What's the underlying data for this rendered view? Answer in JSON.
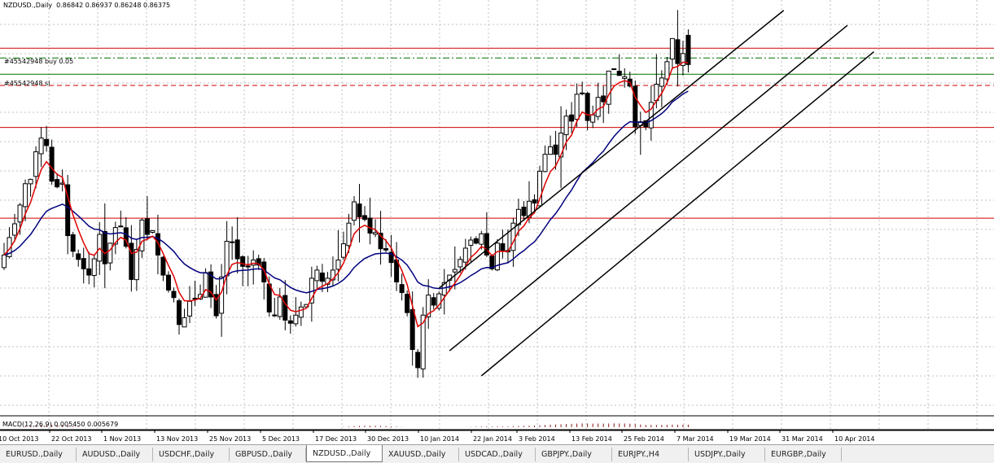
{
  "header": {
    "symbol_label": "NZDUSD.,Daily",
    "ohlc_label": "0.86842 0.86937 0.86248 0.86375"
  },
  "order_labels": {
    "buy": "#45542948 buy 0.05",
    "sl": "#45542948 sl"
  },
  "macd_label": "MACD(12,26,9) 0.005450 0.005679",
  "colors": {
    "grid": "#c0c0c0",
    "candle": "#000000",
    "ma_fast": "#e00000",
    "ma_slow": "#00007f",
    "hline_red": "#d00000",
    "hline_green": "#007000",
    "channel": "#000000"
  },
  "chart_data": {
    "type": "candlestick",
    "symbol": "NZDUSD.",
    "timeframe": "Daily",
    "x_tick_labels": [
      "10 Oct 2013",
      "22 Oct 2013",
      "1 Nov 2013",
      "13 Nov 2013",
      "25 Nov 2013",
      "5 Dec 2013",
      "17 Dec 2013",
      "30 Dec 2013",
      "10 Jan 2014",
      "22 Jan 2014",
      "3 Feb 2014",
      "13 Feb 2014",
      "25 Feb 2014",
      "7 Mar 2014",
      "19 Mar 2014",
      "31 Mar 2014",
      "10 Apr 2014"
    ],
    "last_bar": {
      "open": 0.86842,
      "high": 0.86937,
      "low": 0.86248,
      "close": 0.86375
    },
    "ylim": [
      0.808,
      0.8725
    ],
    "horizontal_lines": [
      {
        "price": 0.86635,
        "color": "red",
        "style": "solid"
      },
      {
        "price": 0.8648,
        "color": "green",
        "style": "dashdot"
      },
      {
        "price": 0.8622,
        "color": "green",
        "style": "solid"
      },
      {
        "price": 0.8604,
        "color": "red",
        "style": "dashed"
      },
      {
        "price": 0.8537,
        "color": "red",
        "style": "solid"
      },
      {
        "price": 0.8392,
        "color": "red",
        "style": "solid"
      }
    ],
    "closes": [
      0.8333,
      0.8361,
      0.8383,
      0.8413,
      0.8447,
      0.8454,
      0.8498,
      0.852,
      0.8508,
      0.8451,
      0.8442,
      0.8448,
      0.8364,
      0.8339,
      0.8326,
      0.8311,
      0.8301,
      0.8327,
      0.8366,
      0.8319,
      0.8352,
      0.8377,
      0.8378,
      0.8347,
      0.8294,
      0.8342,
      0.8389,
      0.8366,
      0.8372,
      0.8333,
      0.8301,
      0.8277,
      0.8265,
      0.8222,
      0.8233,
      0.8259,
      0.8264,
      0.827,
      0.8305,
      0.8266,
      0.8236,
      0.8298,
      0.8355,
      0.8353,
      0.8327,
      0.8315,
      0.8314,
      0.8325,
      0.8317,
      0.829,
      0.8242,
      0.8236,
      0.8266,
      0.8229,
      0.8224,
      0.8237,
      0.825,
      0.8254,
      0.8296,
      0.8309,
      0.8291,
      0.8296,
      0.8309,
      0.8325,
      0.8351,
      0.8384,
      0.8418,
      0.8394,
      0.839,
      0.8368,
      0.8369,
      0.8343,
      0.8341,
      0.8321,
      0.829,
      0.8273,
      0.8241,
      0.8182,
      0.8153,
      0.8237,
      0.8269,
      0.8253,
      0.8271,
      0.8289,
      0.8301,
      0.831,
      0.8326,
      0.8344,
      0.8357,
      0.8352,
      0.8367,
      0.8333,
      0.8311,
      0.8352,
      0.834,
      0.8338,
      0.8384,
      0.8406,
      0.8396,
      0.8419,
      0.8416,
      0.8467,
      0.8494,
      0.8506,
      0.8494,
      0.8528,
      0.8555,
      0.8547,
      0.859,
      0.8592,
      0.8548,
      0.8557,
      0.8585,
      0.8578,
      0.8627,
      0.863,
      0.862,
      0.8618,
      0.8603,
      0.8538,
      0.8546,
      0.8538,
      0.8577,
      0.8606,
      0.8616,
      0.8642,
      0.8679,
      0.8639,
      0.8655,
      0.8638
    ],
    "ma_fast": {
      "period": 5,
      "type": "EMA",
      "color": "red"
    },
    "ma_slow": {
      "period": 20,
      "type": "EMA",
      "color": "navy"
    },
    "channel_lines": [
      {
        "from": {
          "bar": 82,
          "price": 0.828
        },
        "to": {
          "bar": 147,
          "price": 0.8724
        }
      },
      {
        "from": {
          "bar": 84,
          "price": 0.818
        },
        "to": {
          "bar": 159,
          "price": 0.87
        }
      },
      {
        "from": {
          "bar": 90,
          "price": 0.814
        },
        "to": {
          "bar": 164,
          "price": 0.8658
        }
      }
    ],
    "macd": {
      "fast": 12,
      "slow": 26,
      "signal": 9,
      "main": 0.00545,
      "signal_value": 0.005679
    }
  },
  "tabs": [
    {
      "label": "EURUSD.,Daily",
      "active": false
    },
    {
      "label": "AUDUSD.,Daily",
      "active": false
    },
    {
      "label": "USDCHF.,Daily",
      "active": false
    },
    {
      "label": "GBPUSD.,Daily",
      "active": false
    },
    {
      "label": "NZDUSD.,Daily",
      "active": true
    },
    {
      "label": "XAUUSD.,Daily",
      "active": false
    },
    {
      "label": "USDCAD.,Daily",
      "active": false
    },
    {
      "label": "GBPJPY.,Daily",
      "active": false
    },
    {
      "label": "EURJPY.,H4",
      "active": false
    },
    {
      "label": "USDJPY.,Daily",
      "active": false
    },
    {
      "label": "EURGBP.,Daily",
      "active": false
    }
  ]
}
